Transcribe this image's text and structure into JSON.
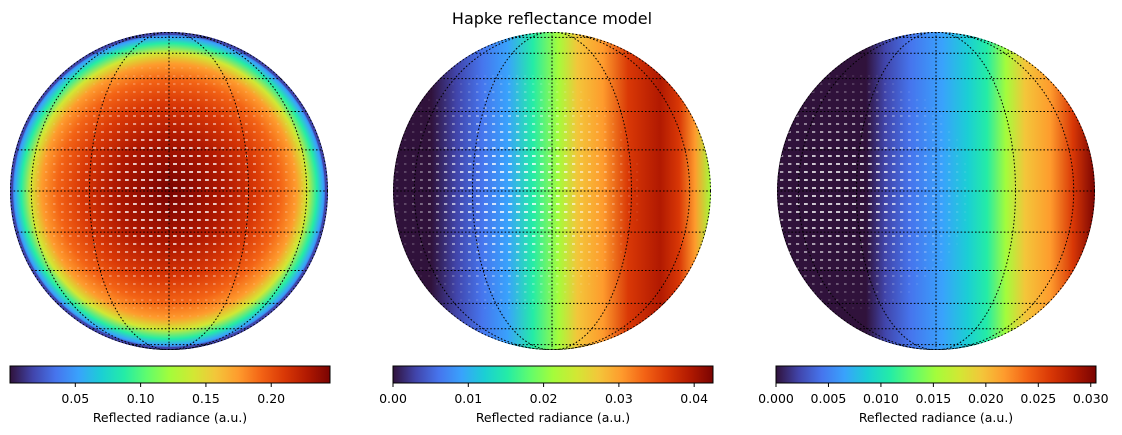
{
  "figure": {
    "title": "Hapke reflectance model"
  },
  "chart_data": [
    {
      "type": "heatmap",
      "projection": "orthographic",
      "colormap": "turbo",
      "illumination": "full (phase angle 0)",
      "value_range": [
        0.0,
        0.245
      ],
      "colorbar": {
        "label": "Reflected radiance (a.u.)",
        "ticks": [
          0.05,
          0.1,
          0.15,
          0.2
        ],
        "tick_labels": [
          "0.05",
          "0.10",
          "0.15",
          "0.20"
        ],
        "range": [
          0.0,
          0.245
        ]
      },
      "grid": true
    },
    {
      "type": "heatmap",
      "projection": "orthographic",
      "colormap": "turbo",
      "illumination": "gibbous, lit from right",
      "value_range": [
        0.0,
        0.0425
      ],
      "colorbar": {
        "label": "Reflected radiance (a.u.)",
        "ticks": [
          0.0,
          0.01,
          0.02,
          0.03,
          0.04
        ],
        "tick_labels": [
          "0.00",
          "0.01",
          "0.02",
          "0.03",
          "0.04"
        ],
        "range": [
          0.0,
          0.0425
        ]
      },
      "grid": true
    },
    {
      "type": "heatmap",
      "projection": "orthographic",
      "colormap": "turbo",
      "illumination": "half-lit, lit from right",
      "value_range": [
        0.0,
        0.0305
      ],
      "colorbar": {
        "label": "Reflected radiance (a.u.)",
        "ticks": [
          0.0,
          0.005,
          0.01,
          0.015,
          0.02,
          0.025,
          0.03
        ],
        "tick_labels": [
          "0.000",
          "0.005",
          "0.010",
          "0.015",
          "0.020",
          "0.025",
          "0.030"
        ],
        "range": [
          0.0,
          0.0305
        ]
      },
      "grid": true
    }
  ]
}
